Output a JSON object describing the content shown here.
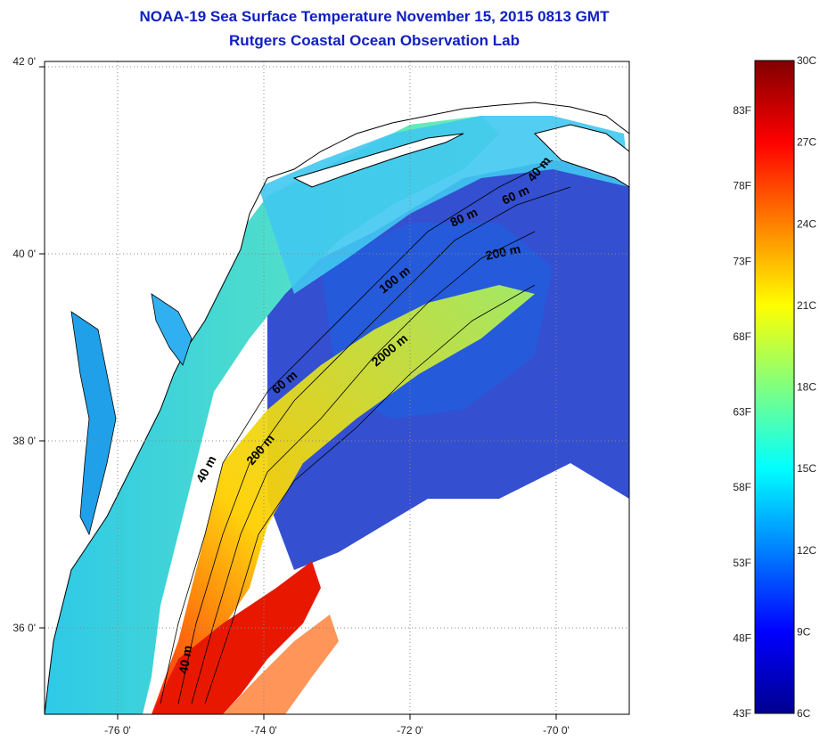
{
  "title": "NOAA-19 Sea Surface Temperature November 15, 2015 0813 GMT",
  "subtitle": "Rutgers Coastal Ocean Observation Lab",
  "map": {
    "lat_labels": [
      "42 0'",
      "40 0'",
      "38 0'",
      "36 0'"
    ],
    "lon_labels": [
      "-76 0'",
      "-74 0'",
      "-72 0'",
      "-70 0'"
    ],
    "contour_labels": [
      "40 m",
      "60 m",
      "80 m",
      "200 m",
      "100 m",
      "2000 m",
      "60 m",
      "200 m",
      "40 m",
      "40 m"
    ]
  },
  "colorbar": {
    "celsius_labels": [
      "30C",
      "27C",
      "24C",
      "21C",
      "18C",
      "15C",
      "12C",
      "9C",
      "6C"
    ],
    "fahrenheit_labels": [
      "83F",
      "78F",
      "73F",
      "68F",
      "63F",
      "58F",
      "53F",
      "48F",
      "43F"
    ],
    "colors": [
      "#00008f",
      "#0000ff",
      "#0080ff",
      "#00ffff",
      "#80ff80",
      "#ffff00",
      "#ff8000",
      "#ff0000",
      "#800000"
    ]
  }
}
